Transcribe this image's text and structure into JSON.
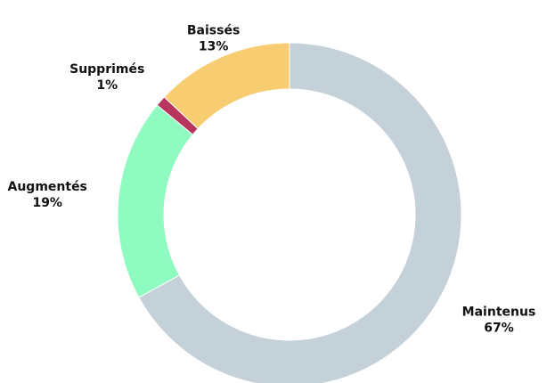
{
  "chart_data": {
    "type": "donut",
    "categories": [
      "Maintenus",
      "Augmentés",
      "Supprimés",
      "Baissés"
    ],
    "values": [
      67,
      19,
      1,
      13
    ],
    "value_labels": [
      "67%",
      "19%",
      "1%",
      "13%"
    ],
    "colors": [
      "#c5d1d8",
      "#8ffbc0",
      "#b8365e",
      "#f8cc70"
    ]
  }
}
